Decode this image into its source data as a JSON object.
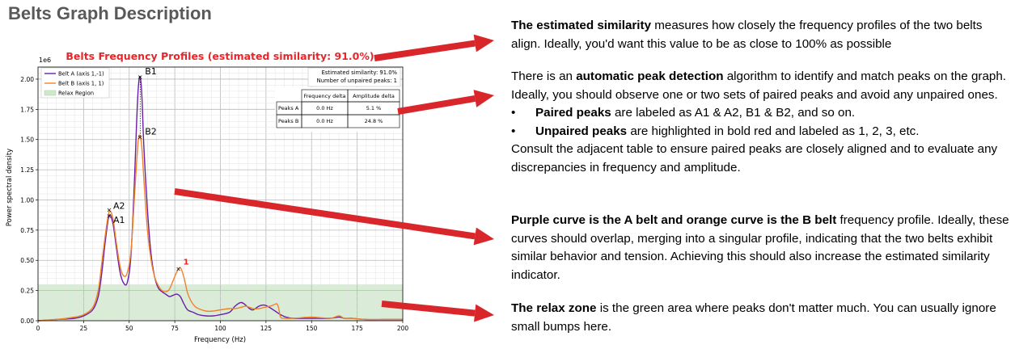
{
  "page": {
    "title": "Belts Graph Description"
  },
  "colors": {
    "belt_a": "#6a1fa6",
    "belt_b": "#f0832a",
    "relax": "#cfe8cc",
    "arrow": "#d9262b",
    "title_red": "#e8262a",
    "unpaired": "#e8262a"
  },
  "chart_data": {
    "type": "line",
    "title": "Belts Frequency Profiles (estimated similarity: 91.0%)",
    "xlabel": "Frequency (Hz)",
    "ylabel": "Power spectral density",
    "y_multiplier_label": "1e6",
    "xlim": [
      0,
      200
    ],
    "ylim": [
      0,
      2.1
    ],
    "x_ticks": [
      0,
      25,
      50,
      75,
      100,
      125,
      150,
      175,
      200
    ],
    "y_ticks": [
      "0.00",
      "0.25",
      "0.50",
      "0.75",
      "1.00",
      "1.25",
      "1.50",
      "1.75",
      "2.00"
    ],
    "y_tick_values": [
      0,
      0.25,
      0.5,
      0.75,
      1.0,
      1.25,
      1.5,
      1.75,
      2.0
    ],
    "grid": true,
    "legend_position": "top-left",
    "legend": [
      "Belt A (axis 1,-1)",
      "Belt B (axis 1, 1)",
      "Relax Region"
    ],
    "relax_region": {
      "ymax": 0.3
    },
    "series": [
      {
        "name": "Belt A (axis 1,-1)",
        "color": "#6a1fa6",
        "x": [
          0,
          10,
          20,
          25,
          30,
          33,
          35,
          37,
          39,
          41,
          43,
          45,
          47,
          49,
          51,
          53,
          54,
          55,
          56,
          57,
          58,
          60,
          62,
          64,
          66,
          68,
          70,
          72,
          74,
          76,
          78,
          80,
          82,
          85,
          88,
          92,
          96,
          100,
          105,
          108,
          111,
          113,
          116,
          118,
          121,
          124,
          127,
          130,
          133,
          136,
          140,
          150,
          160,
          165,
          168,
          172,
          180,
          190,
          200
        ],
        "y": [
          0.0,
          0.01,
          0.02,
          0.04,
          0.09,
          0.2,
          0.4,
          0.67,
          0.87,
          0.81,
          0.6,
          0.4,
          0.31,
          0.32,
          0.55,
          1.2,
          1.62,
          1.93,
          2.02,
          1.85,
          1.45,
          0.92,
          0.55,
          0.36,
          0.27,
          0.24,
          0.22,
          0.2,
          0.21,
          0.22,
          0.2,
          0.14,
          0.09,
          0.07,
          0.05,
          0.04,
          0.04,
          0.05,
          0.07,
          0.12,
          0.15,
          0.14,
          0.1,
          0.09,
          0.12,
          0.13,
          0.11,
          0.08,
          0.05,
          0.03,
          0.02,
          0.02,
          0.02,
          0.03,
          0.02,
          0.02,
          0.01,
          0.01,
          0.01
        ]
      },
      {
        "name": "Belt B (axis 1, 1)",
        "color": "#f0832a",
        "x": [
          0,
          10,
          20,
          25,
          30,
          33,
          35,
          37,
          39,
          41,
          43,
          45,
          47,
          49,
          51,
          53,
          54,
          55,
          56,
          57,
          58,
          60,
          62,
          64,
          66,
          68,
          70,
          72,
          74,
          76,
          78,
          80,
          82,
          84,
          86,
          88,
          92,
          96,
          100,
          105,
          108,
          111,
          114,
          118,
          121,
          124,
          127,
          129,
          131,
          132,
          133,
          135,
          140,
          150,
          160,
          165,
          168,
          172,
          180,
          190,
          200
        ],
        "y": [
          0.0,
          0.01,
          0.03,
          0.05,
          0.11,
          0.25,
          0.48,
          0.72,
          0.9,
          0.85,
          0.64,
          0.45,
          0.37,
          0.4,
          0.58,
          1.05,
          1.3,
          1.5,
          1.53,
          1.42,
          1.18,
          0.75,
          0.5,
          0.36,
          0.29,
          0.25,
          0.24,
          0.26,
          0.33,
          0.4,
          0.44,
          0.36,
          0.23,
          0.16,
          0.12,
          0.1,
          0.08,
          0.08,
          0.09,
          0.1,
          0.1,
          0.11,
          0.12,
          0.1,
          0.1,
          0.11,
          0.12,
          0.13,
          0.14,
          0.1,
          0.03,
          0.02,
          0.02,
          0.03,
          0.02,
          0.04,
          0.02,
          0.02,
          0.01,
          0.01,
          0.01
        ]
      }
    ],
    "peaks": [
      {
        "label": "A1",
        "x": 39,
        "y": 0.87,
        "color": "#000000",
        "paired": true
      },
      {
        "label": "A2",
        "x": 39,
        "y": 0.92,
        "color": "#000000",
        "paired": true
      },
      {
        "label": "B1",
        "x": 56,
        "y": 2.02,
        "color": "#000000",
        "paired": true
      },
      {
        "label": "B2",
        "x": 56,
        "y": 1.52,
        "color": "#000000",
        "paired": true
      },
      {
        "label": "1",
        "x": 77,
        "y": 0.43,
        "color": "#e8262a",
        "paired": false
      }
    ],
    "info_box": [
      "Estimated similarity: 91.0%",
      "Number of unpaired peaks: 1"
    ],
    "table": {
      "headers": [
        "",
        "Frequency delta",
        "Amplitude delta"
      ],
      "rows": [
        [
          "Peaks A",
          "0.0 Hz",
          "5.1 %"
        ],
        [
          "Peaks B",
          "0.0 Hz",
          "24.8 %"
        ]
      ]
    }
  },
  "descriptions": {
    "similarity": {
      "bold": "The estimated similarity",
      "text": " measures how closely the frequency profiles of the two belts align. Ideally, you'd want this value to be as close to 100% as possible"
    },
    "peaks": {
      "pre": "There is an ",
      "bold": "automatic peak detection",
      "text": " algorithm to identify and match peaks on the graph. Ideally, you should observe one or two sets of paired peaks and avoid any unpaired ones.",
      "bullet_symbol": "•",
      "bullet1_bold": "Paired peaks",
      "bullet1_text": " are labeled as A1 & A2, B1 & B2, and so on.",
      "bullet2_bold": "Unpaired peaks",
      "bullet2_text": " are highlighted in bold red and labeled as 1, 2, 3, etc.",
      "footer": "Consult the adjacent table to ensure paired peaks are closely aligned and to evaluate any discrepancies in frequency and amplitude."
    },
    "curves": {
      "bold": "Purple curve is the A belt and orange curve is the B belt",
      "text": " frequency profile. Ideally, these curves should overlap, merging into a singular profile, indicating that the two belts exhibit similar behavior and tension. Achieving this should also increase the estimated similarity indicator."
    },
    "relax": {
      "bold": "The relax zone",
      "text": " is the green area where peaks don't matter much. You can usually ignore small bumps here."
    }
  }
}
